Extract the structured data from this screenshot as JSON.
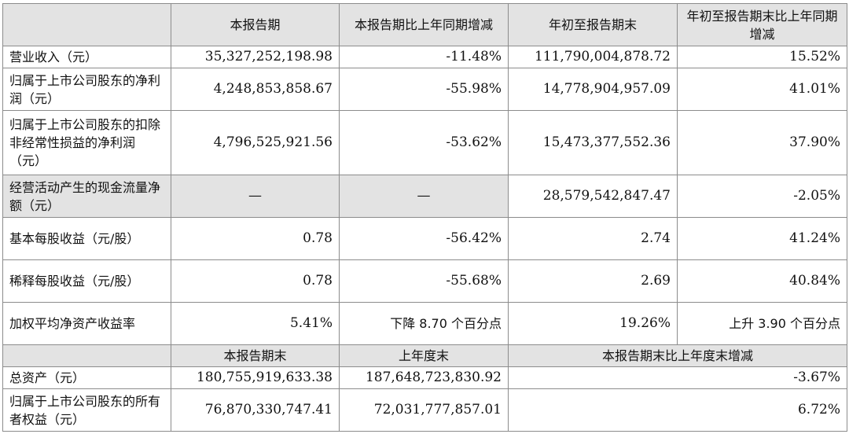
{
  "header": {
    "c1": "本报告期",
    "c2": "本报告期比上年同期增减",
    "c3": "年初至报告期末",
    "c4": "年初至报告期末比上年同期增减"
  },
  "rows": [
    {
      "label": "营业收入（元）",
      "v1": "35,327,252,198.98",
      "v2": "-11.48%",
      "v3": "111,790,004,878.72",
      "v4": "15.52%"
    },
    {
      "label": "归属于上市公司股东的净利润（元）",
      "v1": "4,248,853,858.67",
      "v2": "-55.98%",
      "v3": "14,778,904,957.09",
      "v4": "41.01%"
    },
    {
      "label": "归属于上市公司股东的扣除非经常性损益的净利润（元）",
      "v1": "4,796,525,921.56",
      "v2": "-53.62%",
      "v3": "15,473,377,552.36",
      "v4": "37.90%"
    },
    {
      "label": "经营活动产生的现金流量净额（元）",
      "v1": "—",
      "v2": "—",
      "v3": "28,579,542,847.47",
      "v4": "-2.05%"
    },
    {
      "label": "基本每股收益（元/股）",
      "v1": "0.78",
      "v2": "-56.42%",
      "v3": "2.74",
      "v4": "41.24%"
    },
    {
      "label": "稀释每股收益（元/股）",
      "v1": "0.78",
      "v2": "-55.68%",
      "v3": "2.69",
      "v4": "40.84%"
    },
    {
      "label": "加权平均净资产收益率",
      "v1": "5.41%",
      "v2": "下降 8.70 个百分点",
      "v3": "19.26%",
      "v4": "上升 3.90 个百分点"
    }
  ],
  "header2": {
    "c1": "本报告期末",
    "c2": "上年度末",
    "c3": "本报告期末比上年度末增减"
  },
  "rows2": [
    {
      "label": "总资产（元）",
      "v1": "180,755,919,633.38",
      "v2": "187,648,723,830.92",
      "v3": "-3.67%"
    },
    {
      "label": "归属于上市公司股东的所有者权益（元）",
      "v1": "76,870,330,747.41",
      "v2": "72,031,777,857.01",
      "v3": "6.72%"
    }
  ]
}
